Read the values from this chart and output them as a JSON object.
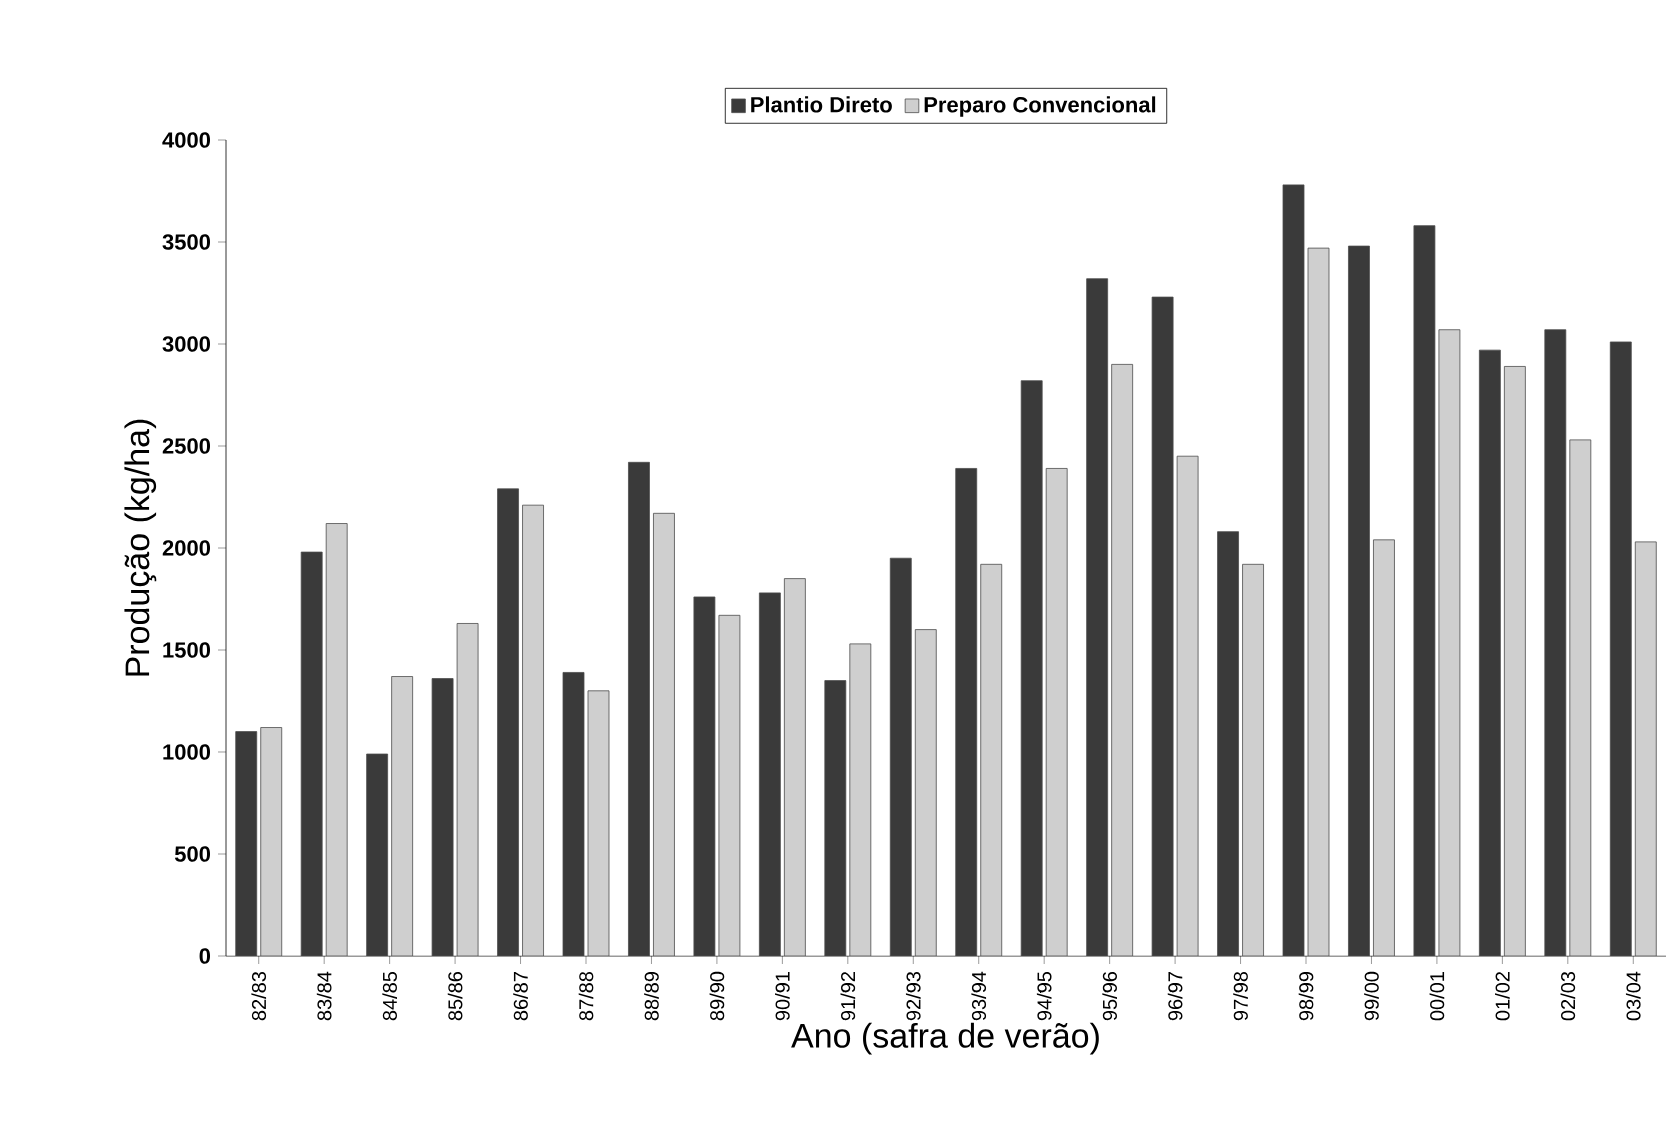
{
  "chart_data": {
    "type": "bar",
    "xlabel": "Ano (safra de verão)",
    "ylabel": "Produção (kg/ha)",
    "categories": [
      "82/83",
      "83/84",
      "84/85",
      "85/86",
      "86/87",
      "87/88",
      "88/89",
      "89/90",
      "90/91",
      "91/92",
      "92/93",
      "93/94",
      "94/95",
      "95/96",
      "96/97",
      "97/98",
      "98/99",
      "99/00",
      "00/01",
      "01/02",
      "02/03",
      "03/04"
    ],
    "series": [
      {
        "name": "Plantio Direto",
        "color": "#3a3a3a",
        "values": [
          1100,
          1980,
          990,
          1360,
          2290,
          1390,
          2420,
          1760,
          1780,
          1350,
          1950,
          2390,
          2820,
          3320,
          3230,
          2080,
          3780,
          3480,
          3580,
          2970,
          3070,
          3010
        ]
      },
      {
        "name": "Preparo Convencional",
        "color": "#cfcfcf",
        "values": [
          1120,
          2120,
          1370,
          1630,
          2210,
          1300,
          2170,
          1670,
          1850,
          1530,
          1600,
          1920,
          2390,
          2900,
          2450,
          1920,
          3470,
          2040,
          3070,
          2890,
          2530,
          2030
        ]
      }
    ],
    "ylim": [
      0,
      4000
    ],
    "yticks": [
      0,
      500,
      1000,
      1500,
      2000,
      2500,
      3000,
      3500,
      4000
    ],
    "grid": false,
    "legend": "top"
  }
}
